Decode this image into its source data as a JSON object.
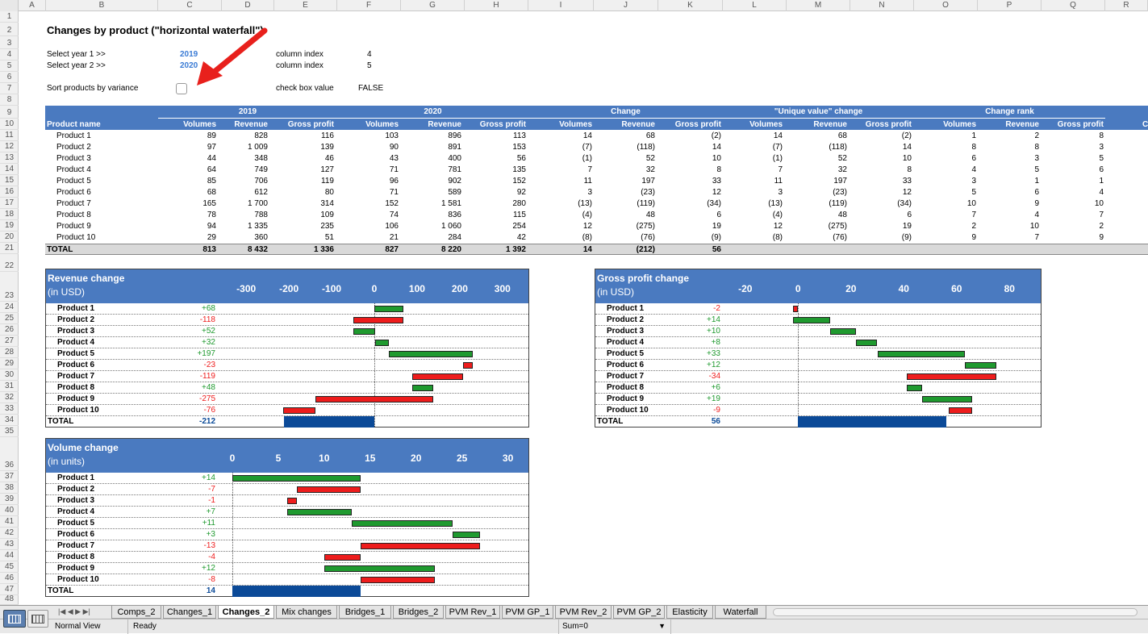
{
  "columns": [
    "A",
    "B",
    "C",
    "D",
    "E",
    "F",
    "G",
    "H",
    "I",
    "J",
    "K",
    "L",
    "M",
    "N",
    "O",
    "P",
    "Q",
    "R"
  ],
  "rows": [
    "1",
    "2",
    "3",
    "4",
    "5",
    "6",
    "7",
    "8",
    "9",
    "10",
    "11",
    "12",
    "13",
    "14",
    "15",
    "16",
    "17",
    "18",
    "19",
    "20",
    "21",
    "22",
    "23",
    "24",
    "25",
    "26",
    "27",
    "28",
    "29",
    "30",
    "31",
    "32",
    "33",
    "34",
    "35",
    "36",
    "37",
    "38",
    "39",
    "40",
    "41",
    "42",
    "43",
    "44",
    "45",
    "46",
    "47",
    "48"
  ],
  "title": "Changes by product (\"horizontal waterfall\")",
  "controls": {
    "year1_label": "Select year 1 >>",
    "year1_value": "2019",
    "year2_label": "Select year 2 >>",
    "year2_value": "2020",
    "colindex_label1": "column index",
    "colindex_value1": "4",
    "colindex_label2": "column index",
    "colindex_value2": "5",
    "sort_label": "Sort products by variance",
    "checkbox_label": "check box value",
    "checkbox_value": "FALSE"
  },
  "table": {
    "groups": [
      "2019",
      "2020",
      "Change",
      "\"Unique value\" change",
      "Change rank"
    ],
    "product_header": "Product name",
    "subheaders": [
      "Volumes",
      "Revenue",
      "Gross profit",
      "Volumes",
      "Revenue",
      "Gross profit",
      "Volumes",
      "Revenue",
      "Gross profit",
      "Volumes",
      "Revenue",
      "Gross profit",
      "Volumes",
      "Revenue",
      "Gross profit"
    ],
    "rows": [
      {
        "name": "Product 1",
        "cells": [
          "89",
          "828",
          "116",
          "103",
          "896",
          "113",
          "14",
          "68",
          "(2)",
          "14",
          "68",
          "(2)",
          "1",
          "2",
          "8"
        ]
      },
      {
        "name": "Product 2",
        "cells": [
          "97",
          "1 009",
          "139",
          "90",
          "891",
          "153",
          "(7)",
          "(118)",
          "14",
          "(7)",
          "(118)",
          "14",
          "8",
          "8",
          "3"
        ]
      },
      {
        "name": "Product 3",
        "cells": [
          "44",
          "348",
          "46",
          "43",
          "400",
          "56",
          "(1)",
          "52",
          "10",
          "(1)",
          "52",
          "10",
          "6",
          "3",
          "5"
        ]
      },
      {
        "name": "Product 4",
        "cells": [
          "64",
          "749",
          "127",
          "71",
          "781",
          "135",
          "7",
          "32",
          "8",
          "7",
          "32",
          "8",
          "4",
          "5",
          "6"
        ]
      },
      {
        "name": "Product 5",
        "cells": [
          "85",
          "706",
          "119",
          "96",
          "902",
          "152",
          "11",
          "197",
          "33",
          "11",
          "197",
          "33",
          "3",
          "1",
          "1"
        ]
      },
      {
        "name": "Product 6",
        "cells": [
          "68",
          "612",
          "80",
          "71",
          "589",
          "92",
          "3",
          "(23)",
          "12",
          "3",
          "(23)",
          "12",
          "5",
          "6",
          "4"
        ]
      },
      {
        "name": "Product 7",
        "cells": [
          "165",
          "1 700",
          "314",
          "152",
          "1 581",
          "280",
          "(13)",
          "(119)",
          "(34)",
          "(13)",
          "(119)",
          "(34)",
          "10",
          "9",
          "10"
        ]
      },
      {
        "name": "Product 8",
        "cells": [
          "78",
          "788",
          "109",
          "74",
          "836",
          "115",
          "(4)",
          "48",
          "6",
          "(4)",
          "48",
          "6",
          "7",
          "4",
          "7"
        ]
      },
      {
        "name": "Product 9",
        "cells": [
          "94",
          "1 335",
          "235",
          "106",
          "1 060",
          "254",
          "12",
          "(275)",
          "19",
          "12",
          "(275)",
          "19",
          "2",
          "10",
          "2"
        ]
      },
      {
        "name": "Product 10",
        "cells": [
          "29",
          "360",
          "51",
          "21",
          "284",
          "42",
          "(8)",
          "(76)",
          "(9)",
          "(8)",
          "(76)",
          "(9)",
          "9",
          "7",
          "9"
        ]
      }
    ],
    "total": {
      "name": "TOTAL",
      "cells": [
        "813",
        "8 432",
        "1 336",
        "827",
        "8 220",
        "1 392",
        "14",
        "(212)",
        "56",
        "",
        "",
        "",
        "",
        "",
        ""
      ]
    }
  },
  "colors": {
    "header_blue": "#4a7ac0",
    "increase": "#1f9a2f",
    "decrease": "#ee1c1c",
    "total": "#0b4a98",
    "arrow": "#e8201c"
  },
  "charts": [
    {
      "id": "revenue",
      "title": "Revenue change",
      "subtitle": "(in USD)",
      "axis_min": -340,
      "axis_max": 340,
      "ticks": [
        "-300",
        "-200",
        "-100",
        "0",
        "100",
        "200",
        "300"
      ],
      "tick_values": [
        -300,
        -200,
        -100,
        0,
        100,
        200,
        300
      ],
      "labels": [
        "+68",
        "-118",
        "+52",
        "+32",
        "+197",
        "-23",
        "-119",
        "+48",
        "-275",
        "-76"
      ],
      "values": [
        68,
        -118,
        52,
        32,
        197,
        -23,
        -119,
        48,
        -275,
        -76
      ],
      "total_label": "TOTAL",
      "total_value": "-212",
      "total": -212
    },
    {
      "id": "gp",
      "title": "Gross profit change",
      "subtitle": "(in USD)",
      "axis_min": -30,
      "axis_max": 90,
      "ticks": [
        "-20",
        "0",
        "20",
        "40",
        "60",
        "80"
      ],
      "tick_values": [
        -20,
        0,
        20,
        40,
        60,
        80
      ],
      "labels": [
        "-2",
        "+14",
        "+10",
        "+8",
        "+33",
        "+12",
        "-34",
        "+6",
        "+19",
        "-9"
      ],
      "values": [
        -2,
        14,
        10,
        8,
        33,
        12,
        -34,
        6,
        19,
        -9
      ],
      "total_label": "TOTAL",
      "total_value": "56",
      "total": 56
    },
    {
      "id": "volume",
      "title": "Volume change",
      "subtitle": "(in units)",
      "axis_min": 0,
      "axis_max": 31,
      "ticks": [
        "0",
        "5",
        "10",
        "15",
        "20",
        "25",
        "30"
      ],
      "tick_values": [
        0,
        5,
        10,
        15,
        20,
        25,
        30
      ],
      "labels": [
        "+14",
        "-7",
        "-1",
        "+7",
        "+11",
        "+3",
        "-13",
        "-4",
        "+12",
        "-8"
      ],
      "values": [
        14,
        -7,
        -1,
        7,
        11,
        3,
        -13,
        -4,
        12,
        -8
      ],
      "total_label": "TOTAL",
      "total_value": "14",
      "total": 14
    }
  ],
  "product_names": [
    "Product 1",
    "Product 2",
    "Product 3",
    "Product 4",
    "Product 5",
    "Product 6",
    "Product 7",
    "Product 8",
    "Product 9",
    "Product 10"
  ],
  "sheet_tabs": [
    "Comps_2",
    "Changes_1",
    "Changes_2",
    "Mix changes",
    "Bridges_1",
    "Bridges_2",
    "PVM Rev_1",
    "PVM GP_1",
    "PVM Rev_2",
    "PVM GP_2",
    "Elasticity",
    "Waterfall"
  ],
  "active_tab": "Changes_2",
  "status": {
    "view": "Normal View",
    "state": "Ready",
    "sum": "Sum=0"
  }
}
